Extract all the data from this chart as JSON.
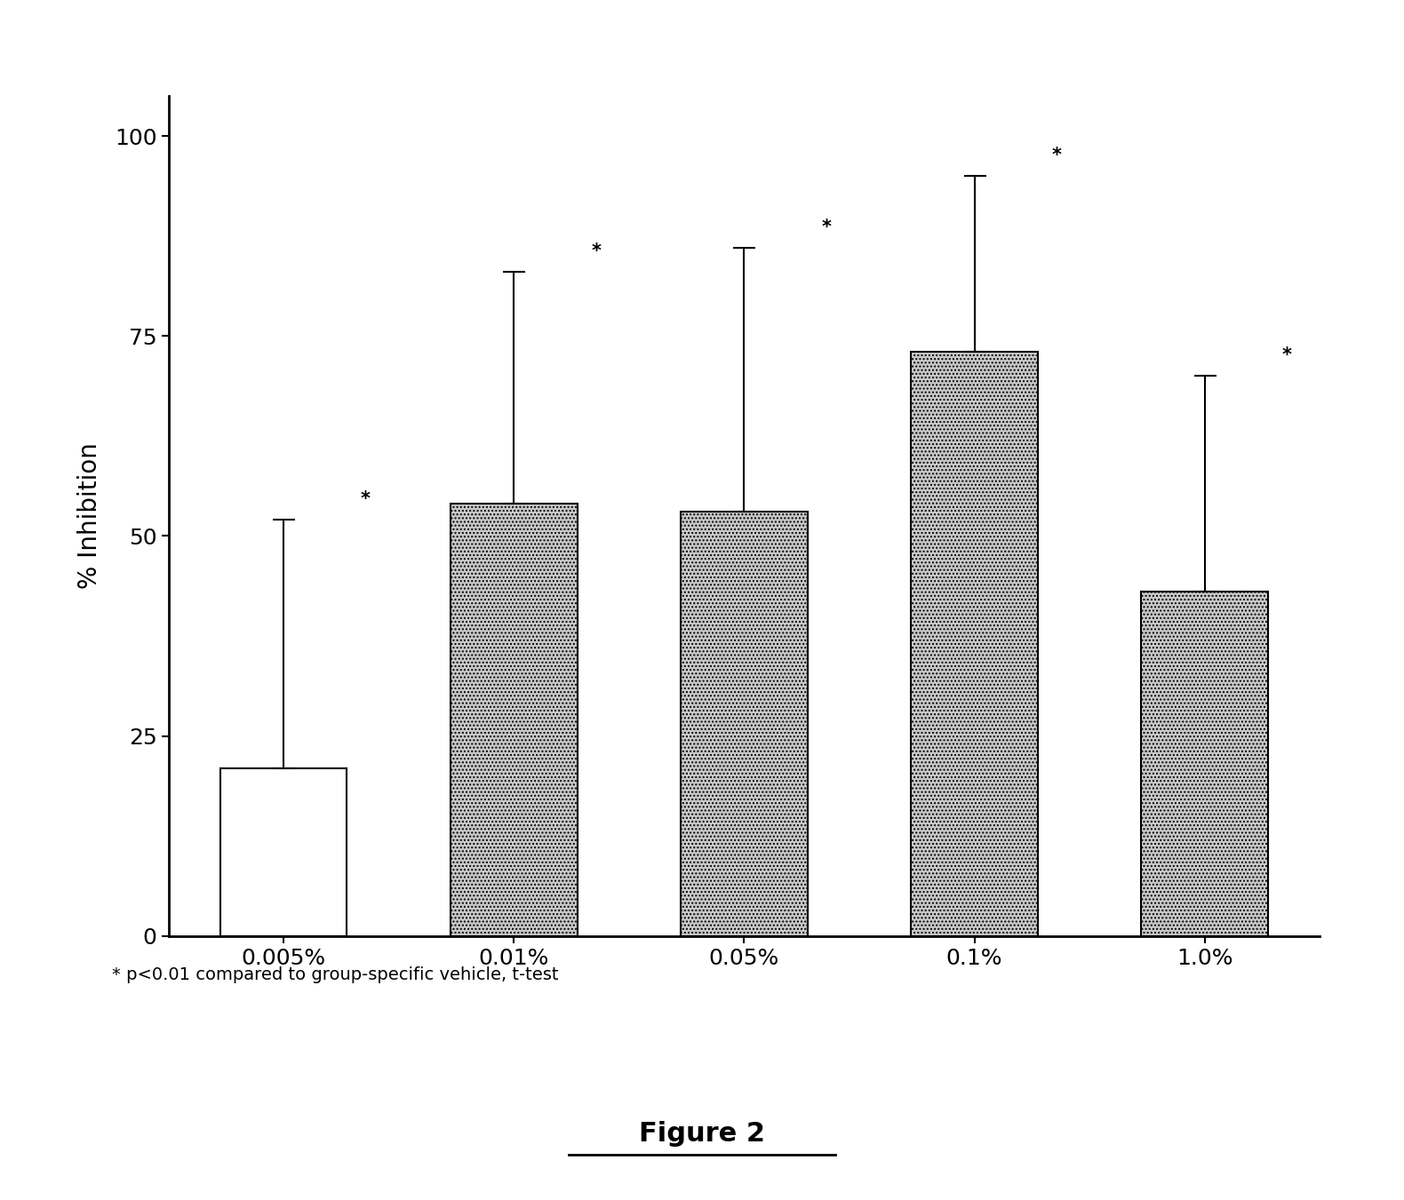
{
  "categories": [
    "0.005%",
    "0.01%",
    "0.05%",
    "0.1%",
    "1.0%"
  ],
  "values": [
    21,
    54,
    53,
    73,
    43
  ],
  "errors_up": [
    31,
    29,
    33,
    22,
    27
  ],
  "bar_colors": [
    "white",
    "#c8c8c8",
    "#c8c8c8",
    "#c8c8c8",
    "#c8c8c8"
  ],
  "bar_hatches": [
    "",
    "....",
    "....",
    "....",
    "...."
  ],
  "ylabel": "% Inhibition",
  "ylim": [
    0,
    105
  ],
  "yticks": [
    0,
    25,
    50,
    75,
    100
  ],
  "footnote": "* p<0.01 compared to group-specific vehicle, t-test",
  "figure_label": "Figure 2",
  "axis_fontsize": 20,
  "tick_fontsize": 18,
  "annot_fontsize": 15,
  "footnote_fontsize": 14,
  "fig_label_fontsize": 22
}
